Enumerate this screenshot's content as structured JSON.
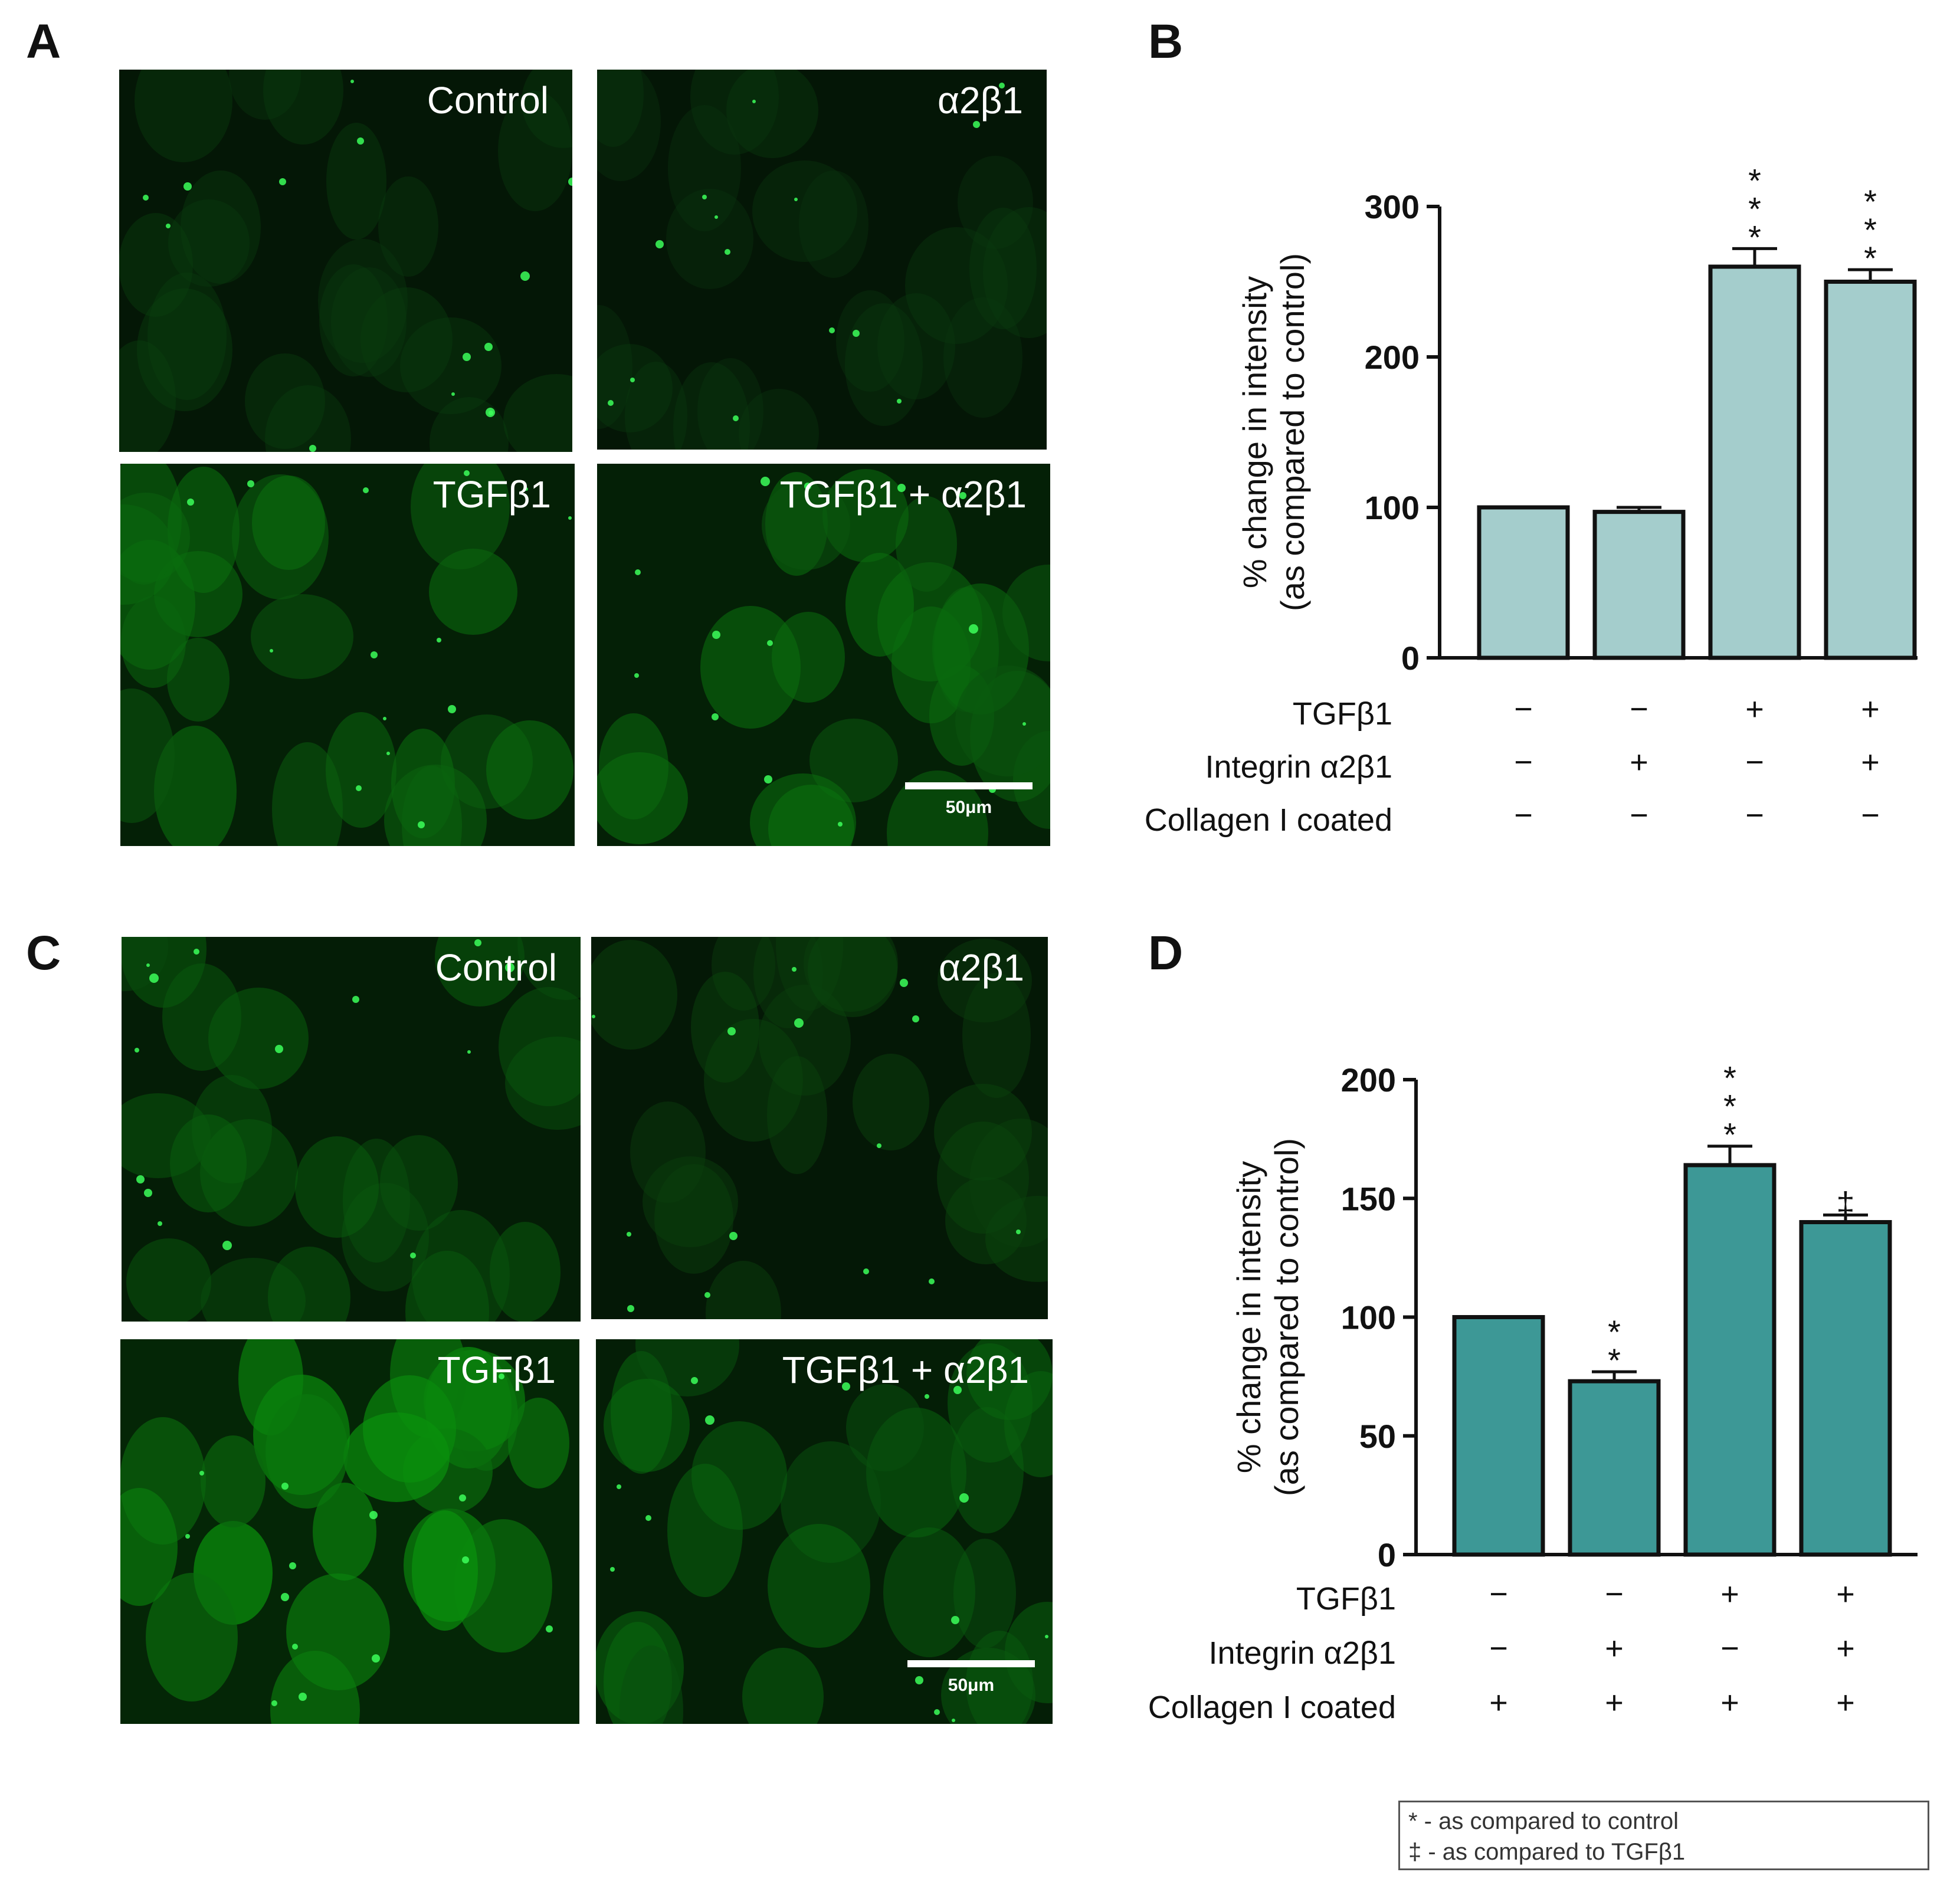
{
  "panels": {
    "a": {
      "letter": "A"
    },
    "b": {
      "letter": "B"
    },
    "c": {
      "letter": "C"
    },
    "d": {
      "letter": "D"
    }
  },
  "images_top": [
    {
      "label": "Control",
      "brightness": 0.15
    },
    {
      "label": "α2β1",
      "brightness": 0.12
    },
    {
      "label": "TGFβ1",
      "brightness": 0.45
    },
    {
      "label": "TGFβ1 + α2β1",
      "brightness": 0.45,
      "scale_bar": "50μm"
    }
  ],
  "images_bottom": [
    {
      "label": "Control",
      "brightness": 0.35
    },
    {
      "label": "α2β1",
      "brightness": 0.2
    },
    {
      "label": "TGFβ1",
      "brightness": 0.65
    },
    {
      "label": "TGFβ1 + α2β1",
      "brightness": 0.4,
      "scale_bar": "50μm"
    }
  ],
  "chart_data": [
    {
      "panel": "B",
      "type": "bar",
      "ylabel_line1": "% change in intensity",
      "ylabel_line2": "(as compared to control)",
      "ylim": [
        0,
        300
      ],
      "yticks": [
        0,
        100,
        200,
        300
      ],
      "values": [
        100,
        97,
        260,
        250
      ],
      "errors": [
        0,
        3,
        12,
        8
      ],
      "significance": [
        "",
        "",
        "***",
        "***"
      ],
      "bar_color": "#a4cdcc",
      "conditions": [
        {
          "label": "TGFβ1",
          "signs": [
            "−",
            "−",
            "+",
            "+"
          ]
        },
        {
          "label": "Integrin α2β1",
          "signs": [
            "−",
            "+",
            "−",
            "+"
          ]
        },
        {
          "label": "Collagen I coated",
          "signs": [
            "−",
            "−",
            "−",
            "−"
          ]
        }
      ]
    },
    {
      "panel": "D",
      "type": "bar",
      "ylabel_line1": "% change in intensity",
      "ylabel_line2": "(as compared to control)",
      "ylim": [
        0,
        200
      ],
      "yticks": [
        0,
        50,
        100,
        150,
        200
      ],
      "values": [
        100,
        73,
        164,
        140
      ],
      "errors": [
        0,
        4,
        8,
        3
      ],
      "significance": [
        "",
        "**",
        "***",
        "‡"
      ],
      "bar_color": "#3d9896",
      "conditions": [
        {
          "label": "TGFβ1",
          "signs": [
            "−",
            "−",
            "+",
            "+"
          ]
        },
        {
          "label": "Integrin α2β1",
          "signs": [
            "−",
            "+",
            "−",
            "+"
          ]
        },
        {
          "label": "Collagen I coated",
          "signs": [
            "+",
            "+",
            "+",
            "+"
          ]
        }
      ]
    }
  ],
  "legend": {
    "line1": "* - as compared to control",
    "line2": "‡ - as compared to TGFβ1"
  }
}
